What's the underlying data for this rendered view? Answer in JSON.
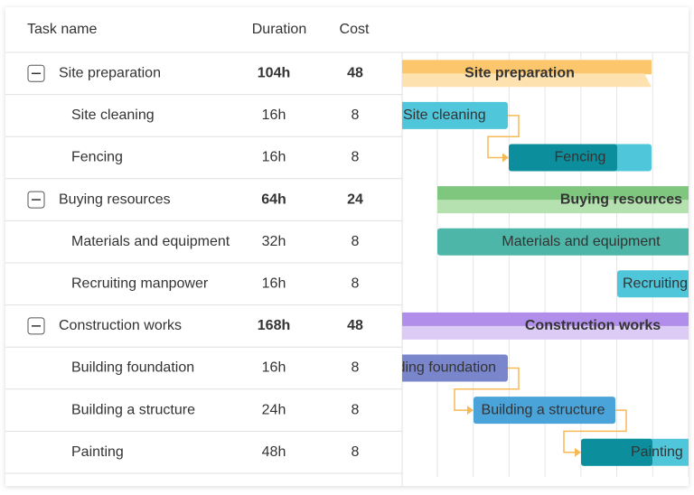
{
  "columns": [
    "Task name",
    "Duration",
    "Cost"
  ],
  "groups": [
    {
      "name": "Site preparation",
      "duration": "104h",
      "cost": "48",
      "tasks": [
        {
          "name": "Site cleaning",
          "duration": "16h",
          "cost": "8"
        },
        {
          "name": "Fencing",
          "duration": "16h",
          "cost": "8"
        }
      ]
    },
    {
      "name": "Buying resources",
      "duration": "64h",
      "cost": "24",
      "tasks": [
        {
          "name": "Materials and equipment",
          "duration": "32h",
          "cost": "8"
        },
        {
          "name": "Recruiting manpower",
          "duration": "16h",
          "cost": "8"
        }
      ]
    },
    {
      "name": "Construction works",
      "duration": "168h",
      "cost": "48",
      "tasks": [
        {
          "name": "Building foundation",
          "duration": "16h",
          "cost": "8"
        },
        {
          "name": "Building a structure",
          "duration": "24h",
          "cost": "8"
        },
        {
          "name": "Painting",
          "duration": "48h",
          "cost": "8"
        }
      ]
    }
  ]
}
